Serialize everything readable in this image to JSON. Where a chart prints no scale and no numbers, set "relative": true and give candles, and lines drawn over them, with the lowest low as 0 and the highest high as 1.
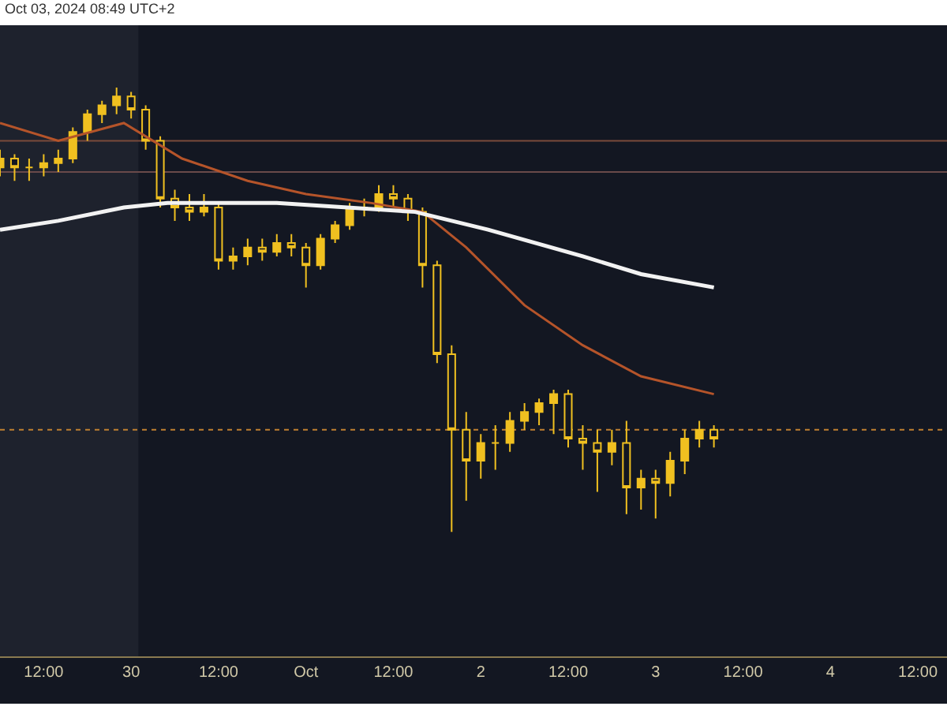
{
  "chart_data": {
    "type": "candlestick",
    "title": "Oct 03, 2024 08:49 UTC+2",
    "relative": true,
    "legend": false,
    "grid": false,
    "xlim": [
      "2024-09-29T06:00",
      "2024-10-04T16:00"
    ],
    "xticks": [
      {
        "value": "2024-09-29T12:00",
        "label": "12:00"
      },
      {
        "value": "2024-09-30",
        "label": "30"
      },
      {
        "value": "2024-09-30T12:00",
        "label": "12:00"
      },
      {
        "value": "2024-10-01",
        "label": "Oct"
      },
      {
        "value": "2024-10-01T12:00",
        "label": "12:00"
      },
      {
        "value": "2024-10-02",
        "label": "2"
      },
      {
        "value": "2024-10-02T12:00",
        "label": "12:00"
      },
      {
        "value": "2024-10-03",
        "label": "3"
      },
      {
        "value": "2024-10-03T12:00",
        "label": "12:00"
      },
      {
        "value": "2024-10-04",
        "label": "4"
      },
      {
        "value": "2024-10-04T12:00",
        "label": "12:00"
      }
    ],
    "series": [
      {
        "color": "#f0c020",
        "x": [
          "2024-09-29T06:00",
          "2024-09-29T08:00",
          "2024-09-29T10:00",
          "2024-09-29T12:00",
          "2024-09-29T14:00",
          "2024-09-29T16:00",
          "2024-09-29T18:00",
          "2024-09-29T20:00",
          "2024-09-29T22:00",
          "2024-09-30T00:00",
          "2024-09-30T02:00",
          "2024-09-30T04:00",
          "2024-09-30T06:00",
          "2024-09-30T08:00",
          "2024-09-30T10:00",
          "2024-09-30T12:00",
          "2024-09-30T14:00",
          "2024-09-30T16:00",
          "2024-09-30T18:00",
          "2024-09-30T20:00",
          "2024-09-30T22:00",
          "2024-10-01T00:00",
          "2024-10-01T02:00",
          "2024-10-01T04:00",
          "2024-10-01T06:00",
          "2024-10-01T08:00",
          "2024-10-01T10:00",
          "2024-10-01T12:00",
          "2024-10-01T14:00",
          "2024-10-01T16:00",
          "2024-10-01T18:00",
          "2024-10-01T20:00",
          "2024-10-01T22:00",
          "2024-10-02T00:00",
          "2024-10-02T02:00",
          "2024-10-02T04:00",
          "2024-10-02T06:00",
          "2024-10-02T08:00",
          "2024-10-02T10:00",
          "2024-10-02T12:00",
          "2024-10-02T14:00",
          "2024-10-02T16:00",
          "2024-10-02T18:00",
          "2024-10-02T20:00",
          "2024-10-02T22:00",
          "2024-10-03T00:00",
          "2024-10-03T02:00",
          "2024-10-03T04:00",
          "2024-10-03T06:00",
          "2024-10-03T08:00"
        ],
        "ohlc": [
          [
            0.82,
            0.86,
            0.8,
            0.84
          ],
          [
            0.84,
            0.85,
            0.79,
            0.82
          ],
          [
            0.82,
            0.84,
            0.79,
            0.82
          ],
          [
            0.82,
            0.85,
            0.8,
            0.83
          ],
          [
            0.83,
            0.86,
            0.81,
            0.84
          ],
          [
            0.84,
            0.91,
            0.83,
            0.9
          ],
          [
            0.9,
            0.95,
            0.88,
            0.94
          ],
          [
            0.94,
            0.97,
            0.92,
            0.96
          ],
          [
            0.96,
            1,
            0.94,
            0.98
          ],
          [
            0.98,
            0.99,
            0.93,
            0.95
          ],
          [
            0.95,
            0.96,
            0.86,
            0.88
          ],
          [
            0.88,
            0.89,
            0.73,
            0.75
          ],
          [
            0.75,
            0.77,
            0.7,
            0.73
          ],
          [
            0.73,
            0.76,
            0.7,
            0.72
          ],
          [
            0.72,
            0.76,
            0.71,
            0.73
          ],
          [
            0.73,
            0.74,
            0.59,
            0.61
          ],
          [
            0.61,
            0.64,
            0.59,
            0.62
          ],
          [
            0.62,
            0.66,
            0.6,
            0.64
          ],
          [
            0.64,
            0.66,
            0.61,
            0.63
          ],
          [
            0.63,
            0.67,
            0.62,
            0.65
          ],
          [
            0.65,
            0.67,
            0.62,
            0.64
          ],
          [
            0.64,
            0.65,
            0.55,
            0.6
          ],
          [
            0.6,
            0.67,
            0.59,
            0.66
          ],
          [
            0.66,
            0.7,
            0.65,
            0.69
          ],
          [
            0.69,
            0.74,
            0.68,
            0.73
          ],
          [
            0.73,
            0.75,
            0.71,
            0.73
          ],
          [
            0.73,
            0.78,
            0.72,
            0.76
          ],
          [
            0.76,
            0.78,
            0.73,
            0.75
          ],
          [
            0.75,
            0.76,
            0.7,
            0.72
          ],
          [
            0.72,
            0.73,
            0.55,
            0.6
          ],
          [
            0.6,
            0.61,
            0.38,
            0.4
          ],
          [
            0.4,
            0.42,
            0,
            0.23
          ],
          [
            0.23,
            0.27,
            0.07,
            0.16
          ],
          [
            0.16,
            0.22,
            0.12,
            0.2
          ],
          [
            0.2,
            0.24,
            0.14,
            0.2
          ],
          [
            0.2,
            0.27,
            0.18,
            0.25
          ],
          [
            0.25,
            0.29,
            0.23,
            0.27
          ],
          [
            0.27,
            0.3,
            0.24,
            0.29
          ],
          [
            0.29,
            0.32,
            0.22,
            0.31
          ],
          [
            0.31,
            0.32,
            0.19,
            0.21
          ],
          [
            0.21,
            0.24,
            0.14,
            0.2
          ],
          [
            0.2,
            0.23,
            0.09,
            0.18
          ],
          [
            0.18,
            0.23,
            0.15,
            0.2
          ],
          [
            0.2,
            0.25,
            0.04,
            0.1
          ],
          [
            0.1,
            0.14,
            0.05,
            0.12
          ],
          [
            0.12,
            0.14,
            0.03,
            0.11
          ],
          [
            0.11,
            0.18,
            0.08,
            0.16
          ],
          [
            0.16,
            0.23,
            0.13,
            0.21
          ],
          [
            0.21,
            0.25,
            0.19,
            0.23
          ],
          [
            0.23,
            0.24,
            0.19,
            0.21
          ]
        ]
      },
      {
        "type": "line",
        "color": "#b5542a",
        "x": [
          "2024-09-29T06:00",
          "2024-09-29T14:00",
          "2024-09-29T23:00",
          "2024-09-30T07:00",
          "2024-09-30T16:00",
          "2024-10-01T00:00",
          "2024-10-01T09:00",
          "2024-10-01T16:00",
          "2024-10-01T22:00",
          "2024-10-02T06:00",
          "2024-10-02T14:00",
          "2024-10-02T22:00",
          "2024-10-03T08:00"
        ],
        "values": [
          0.92,
          0.88,
          0.92,
          0.84,
          0.79,
          0.76,
          0.74,
          0.72,
          0.64,
          0.51,
          0.42,
          0.35,
          0.31
        ]
      },
      {
        "type": "line",
        "color": "#f2f2f2",
        "x": [
          "2024-09-29T06:00",
          "2024-09-29T14:00",
          "2024-09-29T23:00",
          "2024-09-30T05:00",
          "2024-09-30T20:00",
          "2024-10-01T15:00",
          "2024-10-02T01:00",
          "2024-10-02T14:00",
          "2024-10-02T22:00",
          "2024-10-03T08:00"
        ],
        "values": [
          0.68,
          0.7,
          0.73,
          0.74,
          0.74,
          0.72,
          0.68,
          0.62,
          0.58,
          0.55
        ]
      }
    ],
    "ref_lines": [
      {
        "axis": "y",
        "value": 0.88,
        "color": "#7a4a3a",
        "line_style": "solid"
      },
      {
        "axis": "y",
        "value": 0.81,
        "color": "#6a4a4a",
        "line_style": "solid"
      },
      {
        "axis": "y",
        "value": 0.23,
        "color": "#c08030",
        "line_style": "dotted"
      }
    ],
    "bands": [
      {
        "axis": "x",
        "from": "2024-09-29T06:00",
        "to": "2024-09-30T01:00",
        "color": "#1e222d"
      }
    ]
  }
}
